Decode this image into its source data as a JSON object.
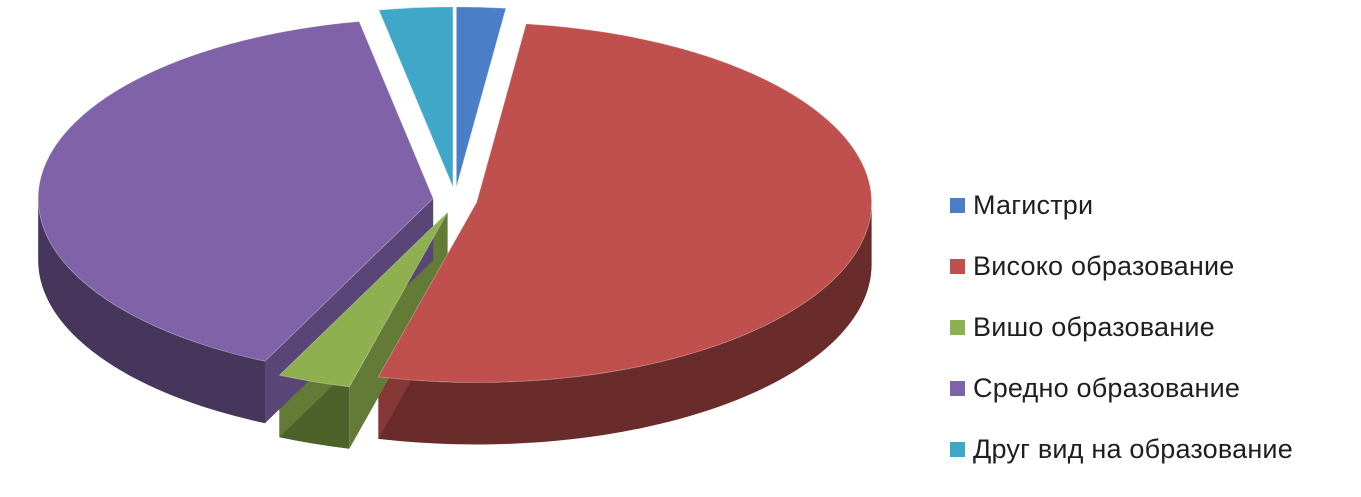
{
  "chart_data": {
    "type": "pie",
    "title": "",
    "legend_position": "right",
    "slices": [
      {
        "label": "Магистри",
        "value": 2,
        "color": "#4a7ec6"
      },
      {
        "label": "Високо образование",
        "value": 52,
        "color": "#c0504d"
      },
      {
        "label": "Вишо образование",
        "value": 3,
        "color": "#8fb04e"
      },
      {
        "label": "Средно образование",
        "value": 40,
        "color": "#7f62a8"
      },
      {
        "label": "Друг вид на образование",
        "value": 3,
        "color": "#3fa7c7"
      }
    ]
  }
}
